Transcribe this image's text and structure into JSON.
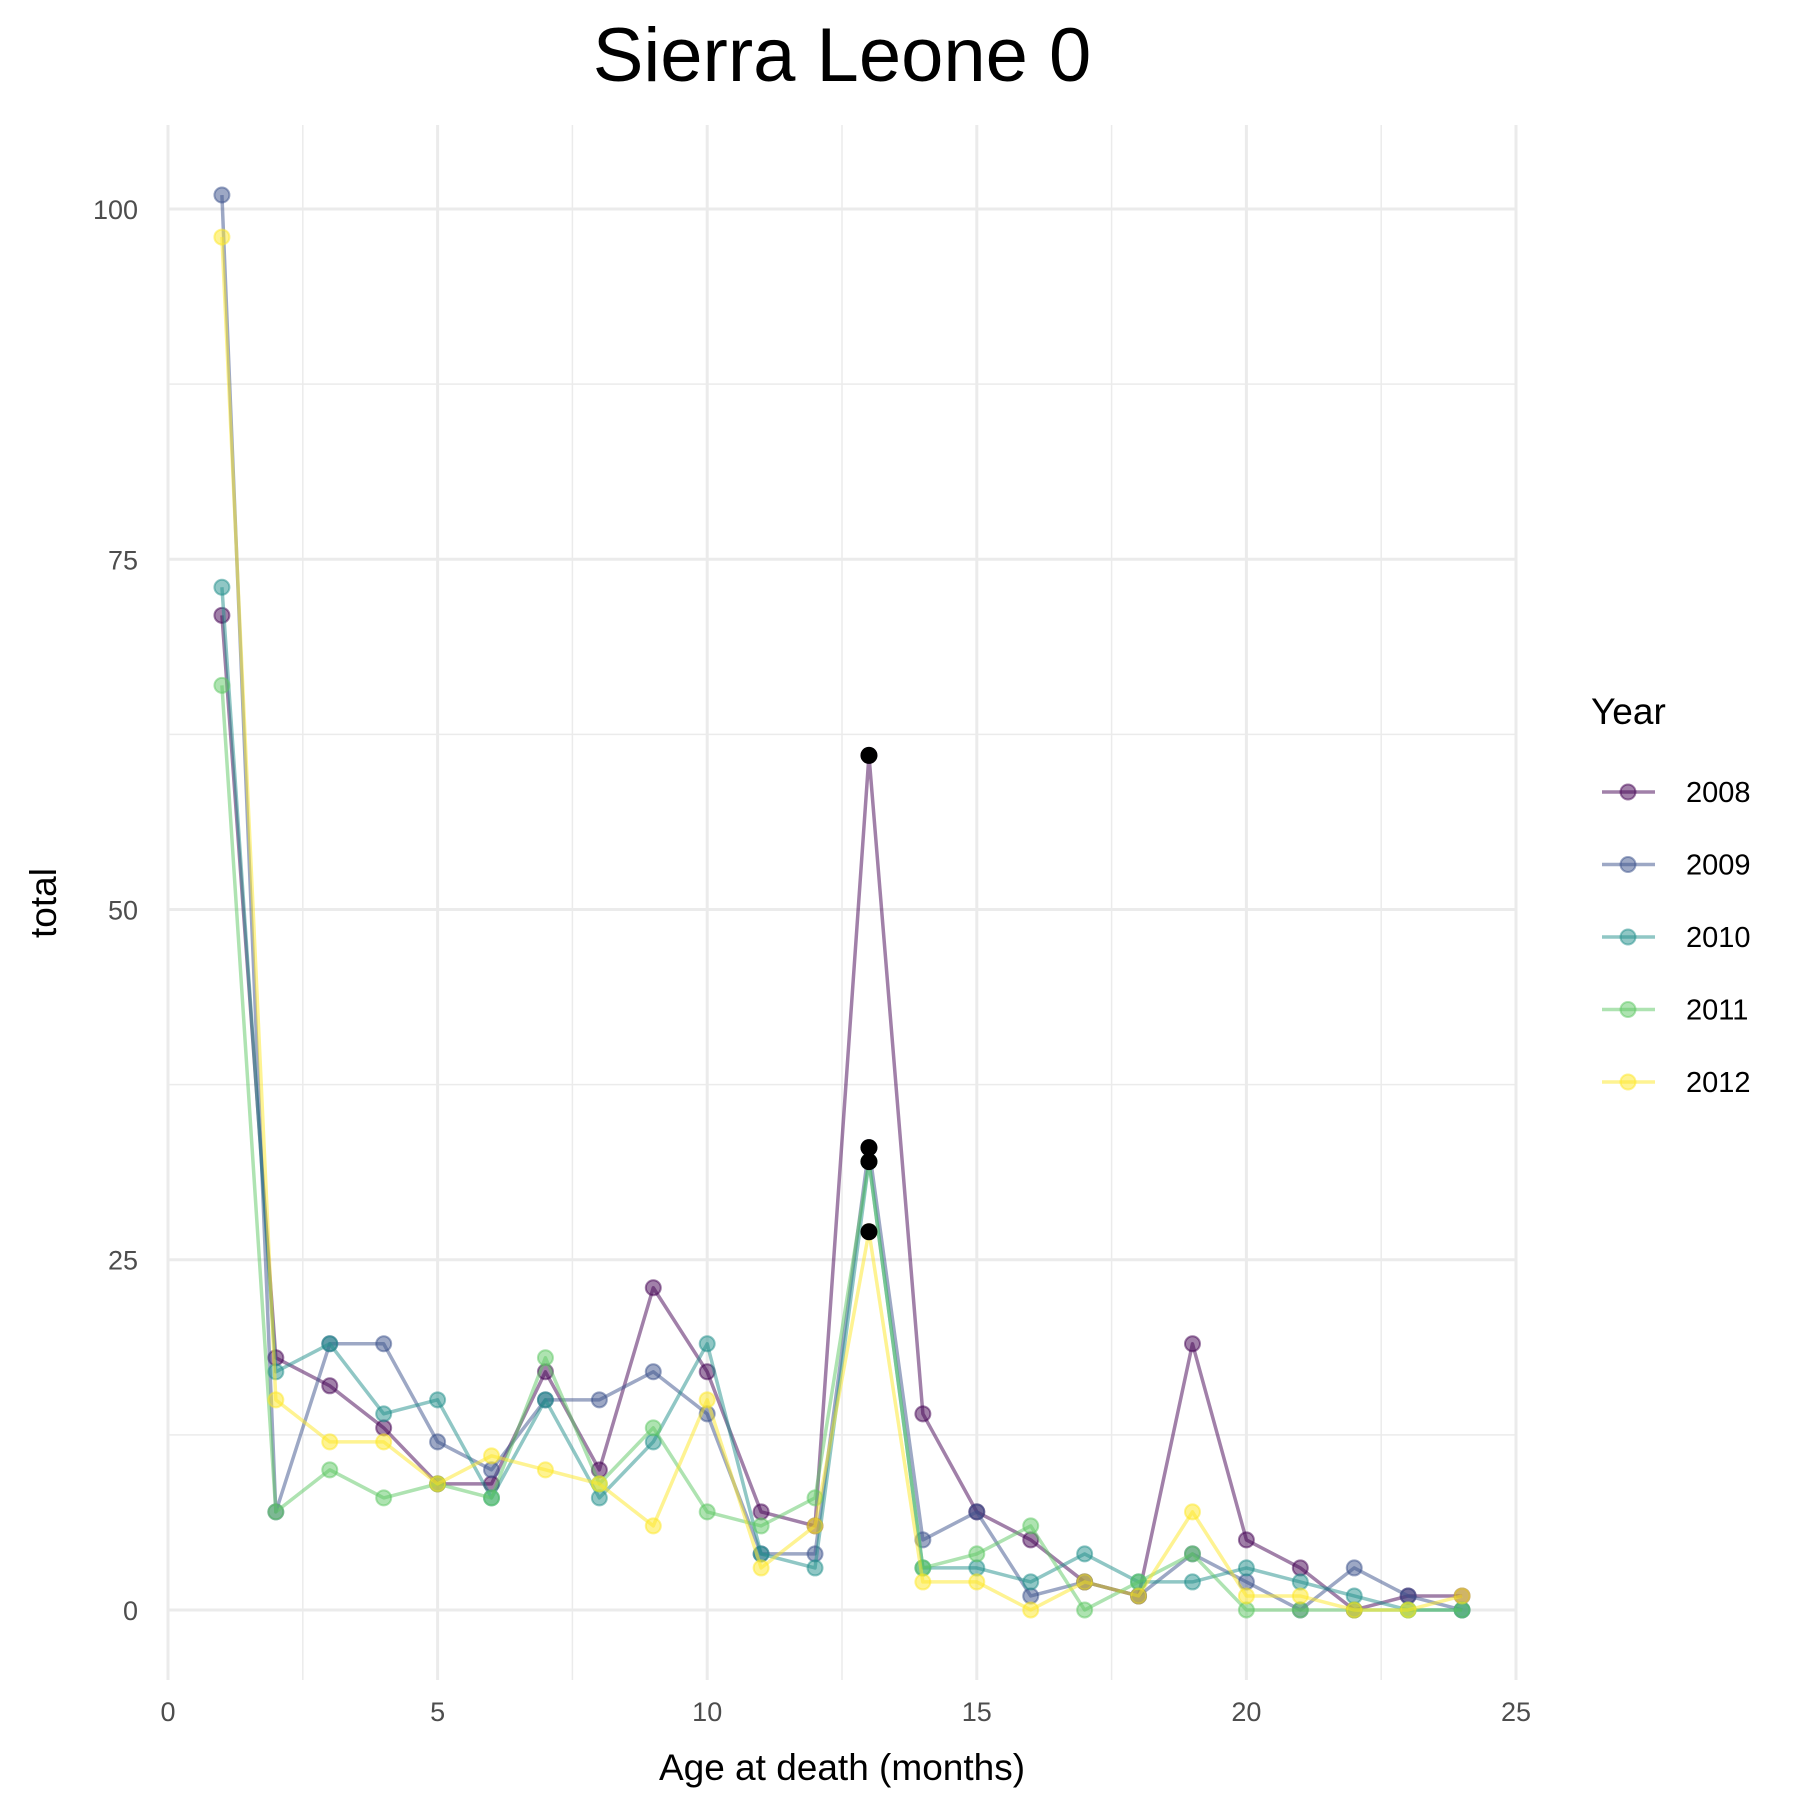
{
  "chart_data": {
    "type": "line",
    "title": "Sierra Leone 0",
    "xlabel": "Age at death (months)",
    "ylabel": "total",
    "xlim": [
      0,
      25
    ],
    "ylim": [
      -5,
      106
    ],
    "x_ticks": [
      0,
      5,
      10,
      15,
      20,
      25
    ],
    "y_ticks": [
      0,
      25,
      50,
      75,
      100
    ],
    "grid": true,
    "legend": {
      "title": "Year",
      "position": "right"
    },
    "x": [
      1,
      2,
      3,
      4,
      5,
      6,
      7,
      8,
      9,
      10,
      11,
      12,
      13,
      14,
      15,
      16,
      17,
      18,
      19,
      20,
      21,
      22,
      23,
      24
    ],
    "series": [
      {
        "name": "2008",
        "color": "#440154",
        "values": [
          71,
          18,
          16,
          13,
          9,
          9,
          17,
          10,
          23,
          17,
          7,
          6,
          61,
          14,
          7,
          5,
          2,
          1,
          19,
          5,
          3,
          0,
          1,
          1
        ]
      },
      {
        "name": "2009",
        "color": "#3B528B",
        "values": [
          101,
          7,
          19,
          19,
          12,
          10,
          15,
          15,
          17,
          14,
          4,
          4,
          33,
          5,
          7,
          1,
          2,
          1,
          4,
          2,
          0,
          3,
          1,
          0
        ]
      },
      {
        "name": "2010",
        "color": "#21908C",
        "values": [
          73,
          17,
          19,
          14,
          15,
          8,
          15,
          8,
          12,
          19,
          4,
          3,
          32,
          3,
          3,
          2,
          4,
          2,
          2,
          3,
          2,
          1,
          0,
          0
        ]
      },
      {
        "name": "2011",
        "color": "#5DC863",
        "values": [
          66,
          7,
          10,
          8,
          9,
          8,
          18,
          9,
          13,
          7,
          6,
          8,
          32,
          3,
          4,
          6,
          0,
          2,
          4,
          0,
          0,
          0,
          0,
          0
        ]
      },
      {
        "name": "2012",
        "color": "#FDE725",
        "values": [
          98,
          15,
          12,
          12,
          9,
          11,
          10,
          9,
          6,
          15,
          3,
          6,
          27,
          2,
          2,
          0,
          2,
          1,
          7,
          1,
          1,
          0,
          0,
          1
        ]
      }
    ],
    "highlight": {
      "x": 13,
      "color": "#000000",
      "values": [
        61,
        33,
        32,
        27
      ]
    }
  }
}
